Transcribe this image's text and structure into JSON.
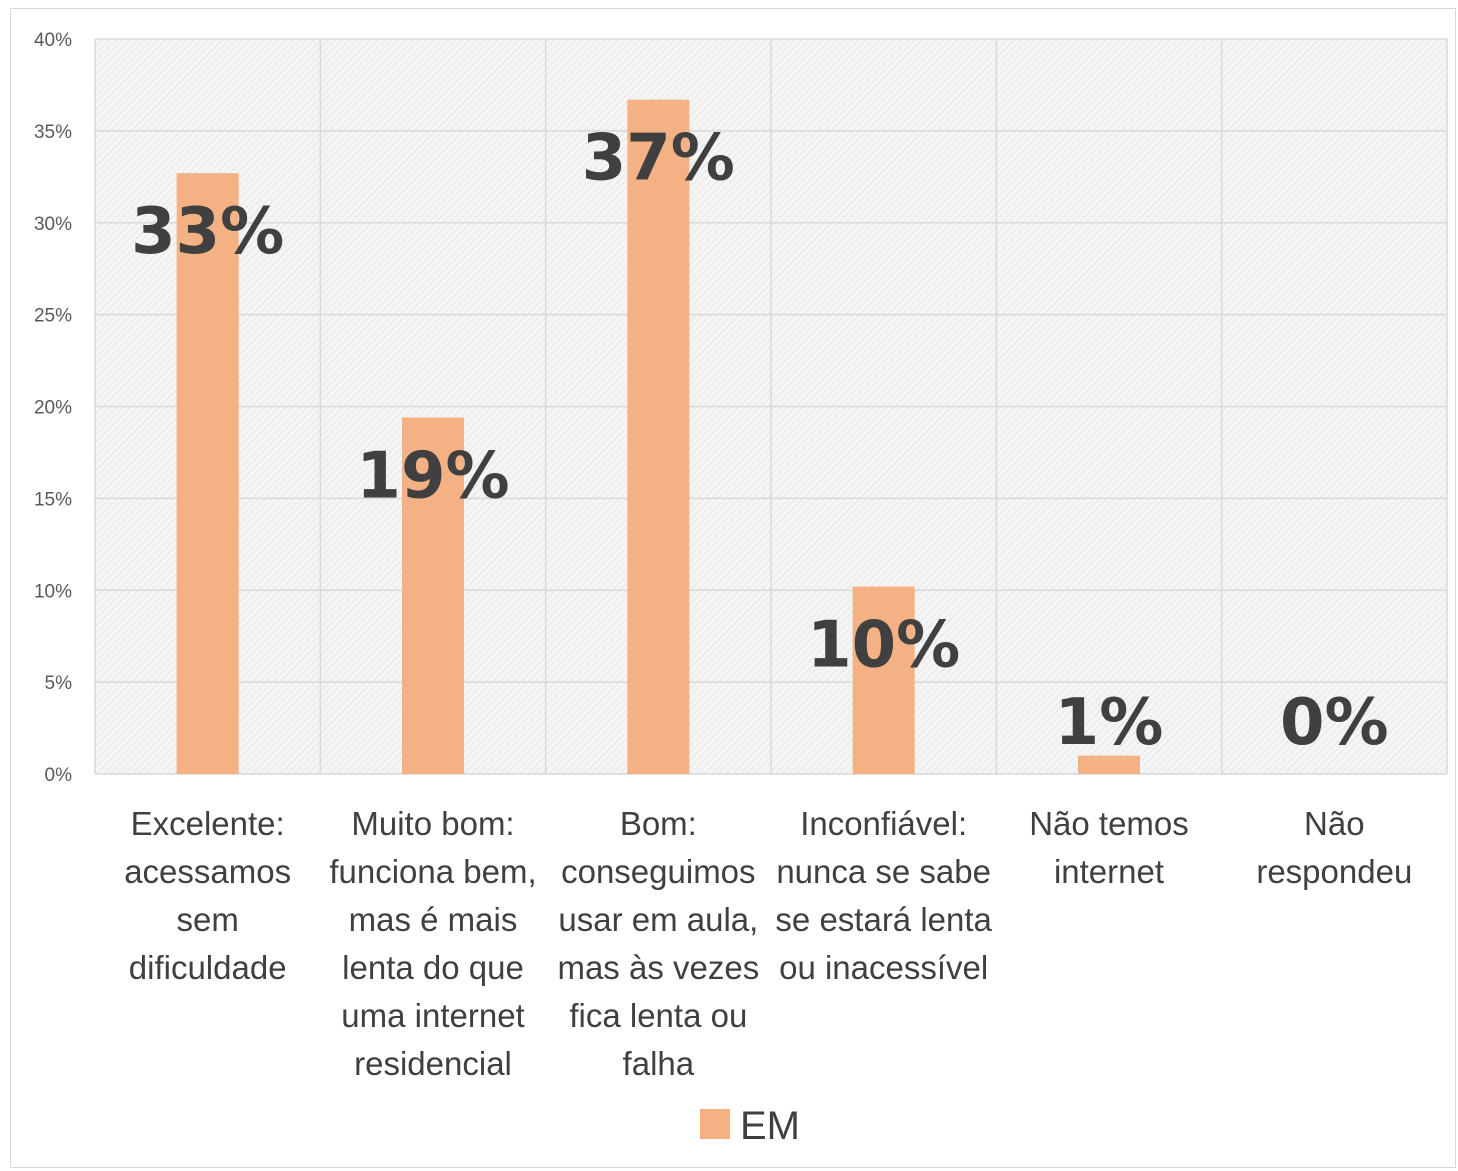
{
  "chart_data": {
    "type": "bar",
    "categories": [
      [
        "Excelente:",
        "acessamos",
        "sem",
        "dificuldade"
      ],
      [
        "Muito bom:",
        "funciona bem,",
        "mas é mais",
        "lenta do que",
        "uma internet",
        "residencial"
      ],
      [
        "Bom:",
        "conseguimos",
        "usar em aula,",
        "mas às vezes",
        "fica lenta ou",
        "falha"
      ],
      [
        "Inconfiável:",
        "nunca se sabe",
        "se estará lenta",
        "ou inacessível"
      ],
      [
        "Não temos",
        "internet"
      ],
      [
        "Não",
        "respondeu"
      ]
    ],
    "series": [
      {
        "name": "EM",
        "values": [
          0.327,
          0.194,
          0.367,
          0.102,
          0.01,
          0.0
        ],
        "labels": [
          "33%",
          "19%",
          "37%",
          "10%",
          "1%",
          "0%"
        ],
        "color": "#F4B183"
      }
    ],
    "ylim": [
      0,
      0.4
    ],
    "yticks": [
      0,
      0.05,
      0.1,
      0.15,
      0.2,
      0.25,
      0.3,
      0.35,
      0.4
    ],
    "ytick_labels": [
      "0%",
      "5%",
      "10%",
      "15%",
      "20%",
      "25%",
      "30%",
      "35%",
      "40%"
    ],
    "grid": true,
    "plot_background": "hatched light gray",
    "legend_position": "bottom",
    "title": "",
    "xlabel": "",
    "ylabel": ""
  }
}
